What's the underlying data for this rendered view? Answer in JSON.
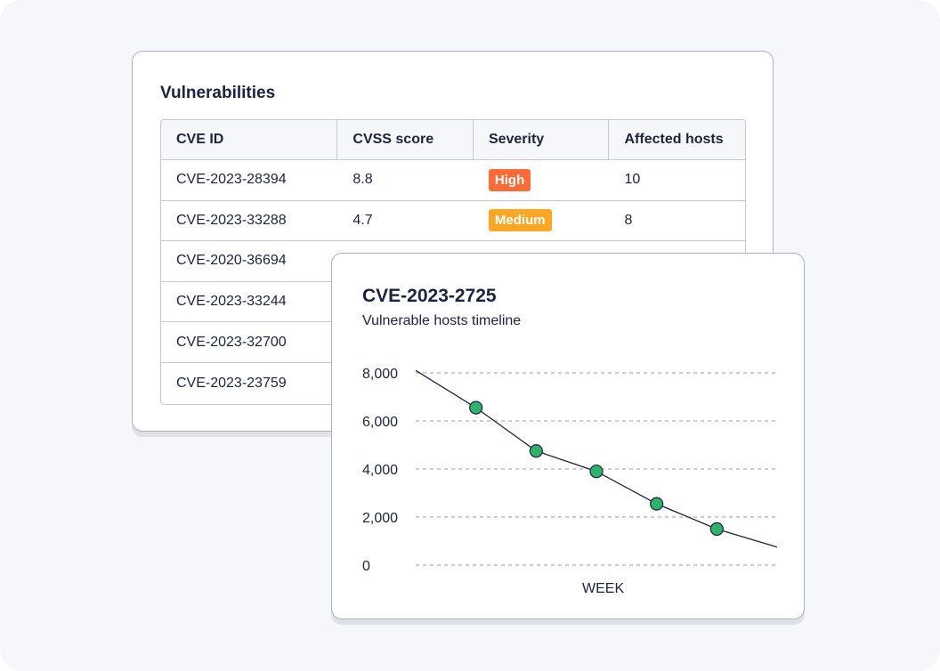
{
  "vulnerabilities": {
    "title": "Vulnerabilities",
    "columns": [
      "CVE ID",
      "CVSS score",
      "Severity",
      "Affected hosts"
    ],
    "rows": [
      {
        "cve": "CVE-2023-28394",
        "cvss": "8.8",
        "severity": "High",
        "hosts": "10"
      },
      {
        "cve": "CVE-2023-33288",
        "cvss": "4.7",
        "severity": "Medium",
        "hosts": "8"
      },
      {
        "cve": "CVE-2020-36694",
        "cvss": "",
        "severity": "",
        "hosts": ""
      },
      {
        "cve": "CVE-2023-33244",
        "cvss": "",
        "severity": "",
        "hosts": ""
      },
      {
        "cve": "CVE-2023-32700",
        "cvss": "",
        "severity": "",
        "hosts": ""
      },
      {
        "cve": "CVE-2023-23759",
        "cvss": "",
        "severity": "",
        "hosts": ""
      }
    ],
    "severity_colors": {
      "High": "#fb6a37",
      "Medium": "#fca624"
    }
  },
  "chart": {
    "title": "CVE-2023-2725",
    "subtitle": "Vulnerable hosts timeline"
  },
  "chart_data": {
    "type": "line",
    "title": "CVE-2023-2725",
    "subtitle": "Vulnerable hosts timeline",
    "xlabel": "WEEK",
    "ylabel": "",
    "ylim": [
      0,
      8000
    ],
    "yticks": [
      0,
      2000,
      4000,
      6000,
      8000
    ],
    "ytick_labels": [
      "0",
      "2,000",
      "4,000",
      "6,000",
      "8,000"
    ],
    "grid": true,
    "x": [
      0,
      1,
      2,
      3,
      4,
      5,
      6
    ],
    "series": [
      {
        "values": [
          8100,
          6550,
          4750,
          3900,
          2550,
          1500,
          750
        ],
        "markers": [
          false,
          true,
          true,
          true,
          true,
          true,
          false
        ]
      }
    ],
    "line_color": "#1c2340",
    "marker_color": "#2fb36a"
  }
}
